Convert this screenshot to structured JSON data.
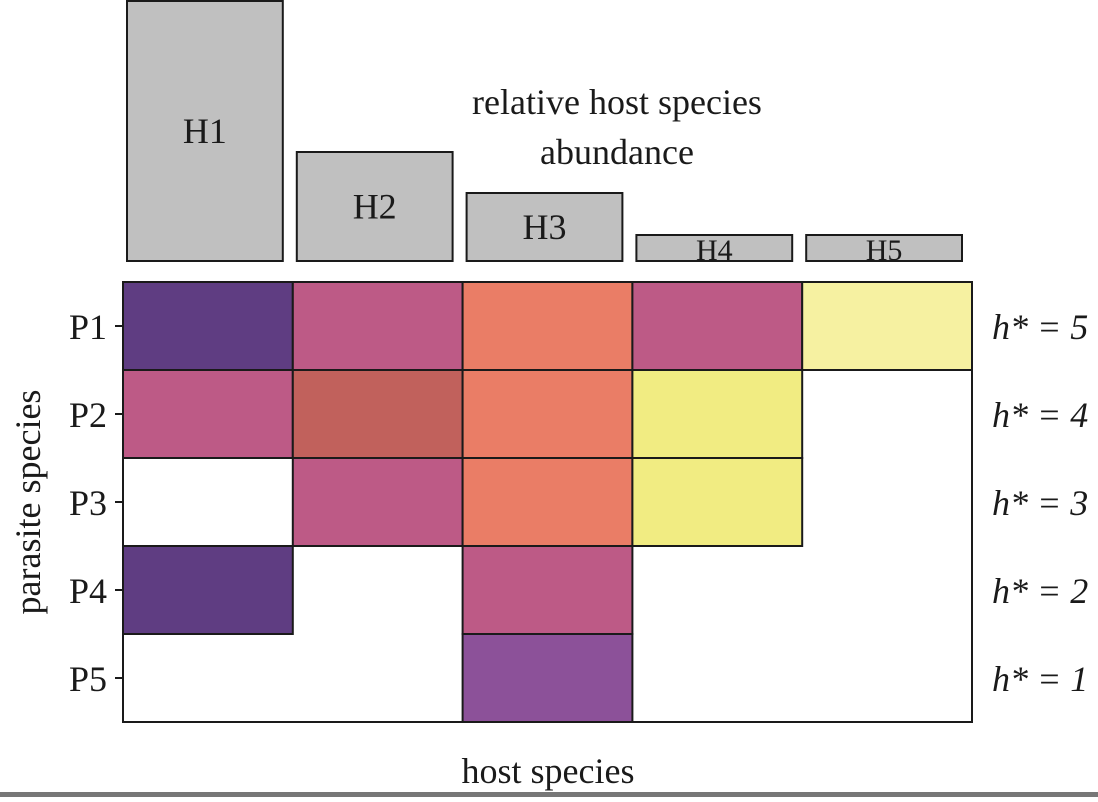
{
  "annotation": {
    "line1": "relative host species",
    "line2": "abundance"
  },
  "axes": {
    "x_title": "host species",
    "y_title": "parasite species"
  },
  "colors": {
    "abundance_bar_fill": "#c0c0c0",
    "grid_stroke": "#1a1a1a"
  },
  "hosts": [
    {
      "id": "H1",
      "relative_abundance": 1.0
    },
    {
      "id": "H2",
      "relative_abundance": 0.42
    },
    {
      "id": "H3",
      "relative_abundance": 0.26
    },
    {
      "id": "H4",
      "relative_abundance": 0.1
    },
    {
      "id": "H5",
      "relative_abundance": 0.1
    }
  ],
  "parasites": [
    {
      "id": "P1",
      "h_star": "h* = 5"
    },
    {
      "id": "P2",
      "h_star": "h* = 4"
    },
    {
      "id": "P3",
      "h_star": "h* = 3"
    },
    {
      "id": "P4",
      "h_star": "h* = 2"
    },
    {
      "id": "P5",
      "h_star": "h* = 1"
    }
  ],
  "matrix": [
    [
      "#5f3d82",
      "#bd5a86",
      "#ea7d66",
      "#bd5a86",
      "#f6f1a1"
    ],
    [
      "#bd5a86",
      "#c1615c",
      "#ea7d66",
      "#f1ec82",
      null
    ],
    [
      null,
      "#bd5a86",
      "#ea7d66",
      "#f1ec82",
      null
    ],
    [
      "#5f3d82",
      null,
      "#bd5a86",
      null,
      null
    ],
    [
      null,
      null,
      "#8c5199",
      null,
      null
    ]
  ]
}
